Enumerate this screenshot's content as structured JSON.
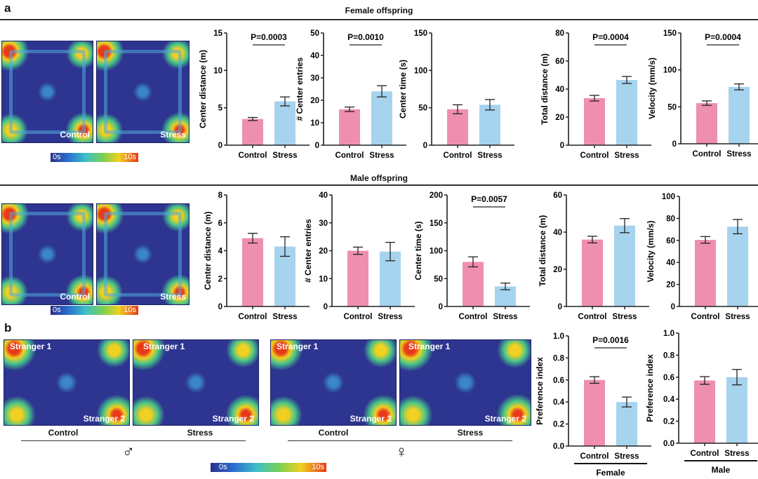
{
  "panel_labels": {
    "a": "a",
    "b": "b"
  },
  "sections": {
    "female": "Female offspring",
    "male": "Male offspring"
  },
  "heatmaps": {
    "control": "Control",
    "stress": "Stress",
    "stranger1": "Stranger 1",
    "stranger2": "Stranger 2",
    "colorbar_min": "0s",
    "colorbar_max": "10s"
  },
  "panel_b": {
    "groups": [
      "Control",
      "Stress",
      "Control",
      "Stress"
    ],
    "male_symbol": "♂",
    "female_symbol": "♀"
  },
  "colors": {
    "control": "#ef8fb0",
    "stress": "#a6d3ee"
  },
  "chart_data": [
    {
      "type": "bar",
      "section": "Female offspring",
      "ylabel": "Center distance (m)",
      "ylim": [
        0,
        15
      ],
      "ticks": [
        0,
        5,
        10,
        15
      ],
      "categories": [
        "Control",
        "Stress"
      ],
      "values": [
        3.5,
        5.85
      ],
      "sem": [
        0.2,
        0.6
      ],
      "p_value": "P=0.0003"
    },
    {
      "type": "bar",
      "section": "Female offspring",
      "ylabel": "# Center entries",
      "ylim": [
        0,
        50
      ],
      "ticks": [
        0,
        10,
        20,
        30,
        40,
        50
      ],
      "categories": [
        "Control",
        "Stress"
      ],
      "values": [
        16,
        24
      ],
      "sem": [
        1,
        2.5
      ],
      "p_value": "P=0.0010"
    },
    {
      "type": "bar",
      "section": "Female offspring",
      "ylabel": "Center time (s)",
      "ylim": [
        0,
        150
      ],
      "ticks": [
        0,
        50,
        100,
        150
      ],
      "categories": [
        "Control",
        "Stress"
      ],
      "values": [
        48,
        54
      ],
      "sem": [
        6,
        7
      ],
      "p_value": ""
    },
    {
      "type": "bar",
      "section": "Female offspring",
      "ylabel": "Total distance (m)",
      "ylim": [
        0,
        80
      ],
      "ticks": [
        0,
        20,
        40,
        60,
        80
      ],
      "categories": [
        "Control",
        "Stress"
      ],
      "values": [
        33.5,
        46.5
      ],
      "sem": [
        2,
        2.5
      ],
      "p_value": "P=0.0004"
    },
    {
      "type": "bar",
      "section": "Female offspring",
      "ylabel": "Velocity (mm/s)",
      "ylim": [
        0,
        150
      ],
      "ticks": [
        0,
        50,
        100,
        150
      ],
      "categories": [
        "Control",
        "Stress"
      ],
      "values": [
        55,
        77
      ],
      "sem": [
        3,
        4
      ],
      "p_value": "P=0.0004"
    },
    {
      "type": "bar",
      "section": "Male offspring",
      "ylabel": "Center distance (m)",
      "ylim": [
        0,
        8
      ],
      "ticks": [
        0,
        2,
        4,
        6,
        8
      ],
      "categories": [
        "Control",
        "Stress"
      ],
      "values": [
        4.9,
        4.3
      ],
      "sem": [
        0.35,
        0.7
      ],
      "p_value": ""
    },
    {
      "type": "bar",
      "section": "Male offspring",
      "ylabel": "# Center entries",
      "ylim": [
        0,
        40
      ],
      "ticks": [
        0,
        10,
        20,
        30,
        40
      ],
      "categories": [
        "Control",
        "Stress"
      ],
      "values": [
        20,
        19.7
      ],
      "sem": [
        1.3,
        3.3
      ],
      "p_value": ""
    },
    {
      "type": "bar",
      "section": "Male offspring",
      "ylabel": "Center time (s)",
      "ylim": [
        0,
        200
      ],
      "ticks": [
        0,
        50,
        100,
        150,
        200
      ],
      "categories": [
        "Control",
        "Stress"
      ],
      "values": [
        80,
        36
      ],
      "sem": [
        9,
        6
      ],
      "p_value": "P=0.0057"
    },
    {
      "type": "bar",
      "section": "Male offspring",
      "ylabel": "Total distance (m)",
      "ylim": [
        0,
        60
      ],
      "ticks": [
        0,
        20,
        40,
        60
      ],
      "categories": [
        "Control",
        "Stress"
      ],
      "values": [
        36,
        43.5
      ],
      "sem": [
        1.8,
        3.8
      ],
      "p_value": ""
    },
    {
      "type": "bar",
      "section": "Male offspring",
      "ylabel": "Velocity (mm/s)",
      "ylim": [
        0,
        100
      ],
      "ticks": [
        0,
        20,
        40,
        60,
        80,
        100
      ],
      "categories": [
        "Control",
        "Stress"
      ],
      "values": [
        60.5,
        72.5
      ],
      "sem": [
        3,
        6.5
      ],
      "p_value": ""
    },
    {
      "type": "bar",
      "section": "b",
      "group": "Female",
      "ylabel": "Preference index",
      "ylim": [
        0,
        1
      ],
      "ticks": [
        "0.0",
        "0.2",
        "0.4",
        "0.6",
        "0.8",
        "1.0"
      ],
      "categories": [
        "Control",
        "Stress"
      ],
      "values": [
        0.6,
        0.4
      ],
      "sem": [
        0.03,
        0.045
      ],
      "p_value": "P=0.0016"
    },
    {
      "type": "bar",
      "section": "b",
      "group": "Male",
      "ylabel": "Preference index",
      "ylim": [
        0,
        1
      ],
      "ticks": [
        "0.0",
        "0.2",
        "0.4",
        "0.6",
        "0.8",
        "1.0"
      ],
      "categories": [
        "Control",
        "Stress"
      ],
      "values": [
        0.57,
        0.6
      ],
      "sem": [
        0.035,
        0.07
      ],
      "p_value": ""
    }
  ]
}
